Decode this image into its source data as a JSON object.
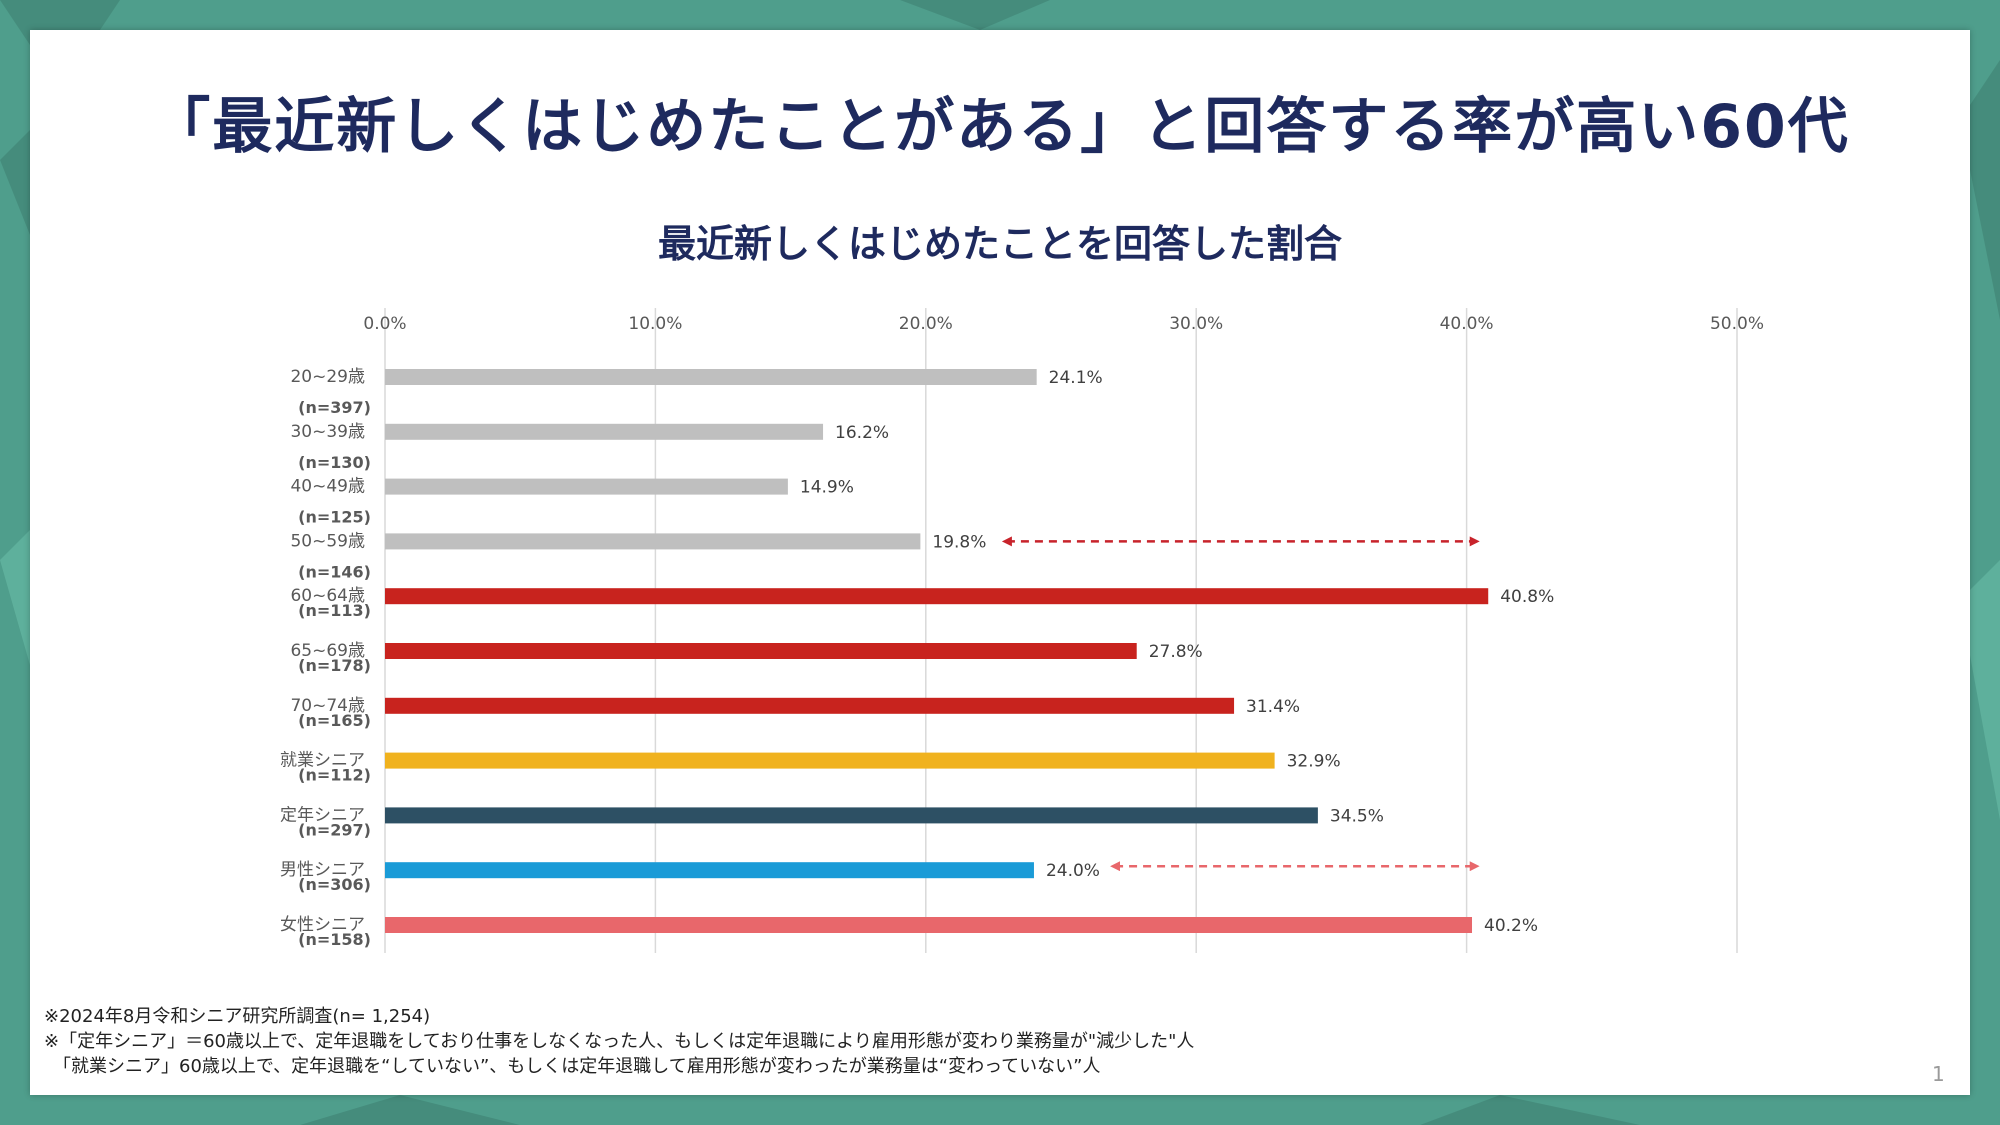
{
  "slide": {
    "title": "「最近新しくはじめたことがある」と回答する率が高い60代",
    "page_number": "1"
  },
  "notes": [
    "※2024年8月令和シニア研究所調査(n= 1,254)",
    "※「定年シニア」＝60歳以上で、定年退職をしており仕事をしなくなった人、もしくは定年退職により雇用形態が変わり業務量が\"減少した\"人",
    "　「就業シニア」60歳以上で、定年退職を“していない”、もしくは定年退職して雇用形態が変わったが業務量は“変わっていない”人"
  ],
  "colors": {
    "title": "#1e2a5e",
    "grid": "#d9d9d9",
    "axis_text": "#595959",
    "arrow_dark": "#c8232b",
    "arrow_light": "#e8676b",
    "background": "#4f9e8c"
  },
  "chart_data": {
    "type": "bar",
    "orientation": "horizontal",
    "title": "最近新しくはじめたことを回答した割合",
    "xlim": [
      0,
      50
    ],
    "x_ticks": [
      "0.0%",
      "10.0%",
      "20.0%",
      "30.0%",
      "40.0%",
      "50.0%"
    ],
    "grid": true,
    "categories": [
      {
        "label": "20~29歳",
        "n": "(n=397)",
        "value": 24.1,
        "value_label": "24.1%",
        "color": "#bfbfbf"
      },
      {
        "label": "30~39歳",
        "n": "(n=130)",
        "value": 16.2,
        "value_label": "16.2%",
        "color": "#bfbfbf"
      },
      {
        "label": "40~49歳",
        "n": "(n=125)",
        "value": 14.9,
        "value_label": "14.9%",
        "color": "#bfbfbf"
      },
      {
        "label": "50~59歳",
        "n": "(n=146)",
        "value": 19.8,
        "value_label": "19.8%",
        "color": "#bfbfbf"
      },
      {
        "label": "60~64歳",
        "n": "(n=113)",
        "value": 40.8,
        "value_label": "40.8%",
        "color": "#c8231e"
      },
      {
        "label": "65~69歳",
        "n": "(n=178)",
        "value": 27.8,
        "value_label": "27.8%",
        "color": "#c8231e"
      },
      {
        "label": "70~74歳",
        "n": "(n=165)",
        "value": 31.4,
        "value_label": "31.4%",
        "color": "#c8231e"
      },
      {
        "label": "就業シニア",
        "n": "(n=112)",
        "value": 32.9,
        "value_label": "32.9%",
        "color": "#f0b21e"
      },
      {
        "label": "定年シニア",
        "n": "(n=297)",
        "value": 34.5,
        "value_label": "34.5%",
        "color": "#2d5064"
      },
      {
        "label": "男性シニア",
        "n": "(n=306)",
        "value": 24.0,
        "value_label": "24.0%",
        "color": "#1a9bd7"
      },
      {
        "label": "女性シニア",
        "n": "(n=158)",
        "value": 40.2,
        "value_label": "40.2%",
        "color": "#e8676b"
      }
    ],
    "arrows": [
      {
        "from_category": "50~59歳",
        "x_from": 23.0,
        "x_to": 40.3,
        "color_key": "arrow_dark"
      },
      {
        "from_category": "男性シニア",
        "x_from": 27.0,
        "x_to": 40.3,
        "color_key": "arrow_light"
      }
    ]
  }
}
